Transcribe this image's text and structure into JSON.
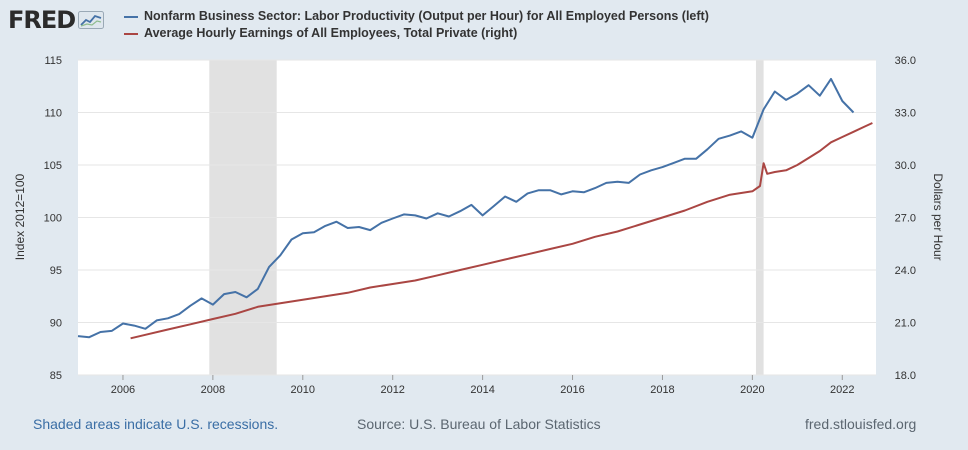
{
  "brand": {
    "logo_text": "FRED",
    "logo_icon": "chart-line-icon"
  },
  "legend": [
    {
      "label": "Nonfarm Business Sector: Labor Productivity (Output per Hour) for All Employed Persons (left)",
      "color": "#4572a7"
    },
    {
      "label": "Average Hourly Earnings of All Employees, Total Private (right)",
      "color": "#aa4643"
    }
  ],
  "footer": {
    "note": "Shaded areas indicate U.S. recessions.",
    "source": "Source: U.S. Bureau of Labor Statistics",
    "url": "fred.stlouisfed.org"
  },
  "chart_data": {
    "type": "line",
    "xlabel": "",
    "x_ticks": [
      "2006",
      "2008",
      "2010",
      "2012",
      "2014",
      "2016",
      "2018",
      "2020",
      "2022"
    ],
    "xlim": [
      2005.0,
      2022.75
    ],
    "left_axis": {
      "label": "Index 2012=100",
      "ylim": [
        85,
        115
      ],
      "ticks": [
        "85",
        "90",
        "95",
        "100",
        "105",
        "110",
        "115"
      ]
    },
    "right_axis": {
      "label": "Dollars per Hour",
      "ylim": [
        18.0,
        36.0
      ],
      "ticks": [
        "18.0",
        "21.0",
        "24.0",
        "27.0",
        "30.0",
        "33.0",
        "36.0"
      ]
    },
    "recessions": [
      [
        2007.92,
        2009.42
      ],
      [
        2020.08,
        2020.25
      ]
    ],
    "grid": true,
    "series": [
      {
        "name": "Nonfarm Business Sector: Labor Productivity (Output per Hour) for All Employed Persons (left)",
        "axis": "left",
        "color": "#4572a7",
        "x": [
          2005.0,
          2005.25,
          2005.5,
          2005.75,
          2006.0,
          2006.25,
          2006.5,
          2006.75,
          2007.0,
          2007.25,
          2007.5,
          2007.75,
          2008.0,
          2008.25,
          2008.5,
          2008.75,
          2009.0,
          2009.25,
          2009.5,
          2009.75,
          2010.0,
          2010.25,
          2010.5,
          2010.75,
          2011.0,
          2011.25,
          2011.5,
          2011.75,
          2012.0,
          2012.25,
          2012.5,
          2012.75,
          2013.0,
          2013.25,
          2013.5,
          2013.75,
          2014.0,
          2014.25,
          2014.5,
          2014.75,
          2015.0,
          2015.25,
          2015.5,
          2015.75,
          2016.0,
          2016.25,
          2016.5,
          2016.75,
          2017.0,
          2017.25,
          2017.5,
          2017.75,
          2018.0,
          2018.25,
          2018.5,
          2018.75,
          2019.0,
          2019.25,
          2019.5,
          2019.75,
          2020.0,
          2020.25,
          2020.5,
          2020.75,
          2021.0,
          2021.25,
          2021.5,
          2021.75,
          2022.0,
          2022.25
        ],
        "values": [
          88.7,
          88.6,
          89.1,
          89.2,
          89.9,
          89.7,
          89.4,
          90.2,
          90.4,
          90.8,
          91.6,
          92.3,
          91.7,
          92.7,
          92.9,
          92.4,
          93.2,
          95.3,
          96.4,
          97.9,
          98.5,
          98.6,
          99.2,
          99.6,
          99.0,
          99.1,
          98.8,
          99.5,
          99.9,
          100.3,
          100.2,
          99.9,
          100.4,
          100.1,
          100.6,
          101.2,
          100.2,
          101.1,
          102.0,
          101.5,
          102.3,
          102.6,
          102.6,
          102.2,
          102.5,
          102.4,
          102.8,
          103.3,
          103.4,
          103.3,
          104.1,
          104.5,
          104.8,
          105.2,
          105.6,
          105.6,
          106.5,
          107.5,
          107.8,
          108.2,
          107.6,
          110.3,
          112.0,
          111.2,
          111.8,
          112.6,
          111.6,
          113.2,
          111.1,
          110.0
        ]
      },
      {
        "name": "Average Hourly Earnings of All Employees, Total Private (right)",
        "axis": "right",
        "color": "#aa4643",
        "x": [
          2006.17,
          2006.5,
          2007.0,
          2007.5,
          2008.0,
          2008.5,
          2009.0,
          2009.5,
          2010.0,
          2010.5,
          2011.0,
          2011.5,
          2012.0,
          2012.5,
          2013.0,
          2013.5,
          2014.0,
          2014.5,
          2015.0,
          2015.5,
          2016.0,
          2016.5,
          2017.0,
          2017.5,
          2018.0,
          2018.5,
          2019.0,
          2019.5,
          2020.0,
          2020.17,
          2020.25,
          2020.33,
          2020.5,
          2020.75,
          2021.0,
          2021.25,
          2021.5,
          2021.75,
          2022.0,
          2022.25,
          2022.5,
          2022.67
        ],
        "values": [
          20.1,
          20.3,
          20.6,
          20.9,
          21.2,
          21.5,
          21.9,
          22.1,
          22.3,
          22.5,
          22.7,
          23.0,
          23.2,
          23.4,
          23.7,
          24.0,
          24.3,
          24.6,
          24.9,
          25.2,
          25.5,
          25.9,
          26.2,
          26.6,
          27.0,
          27.4,
          27.9,
          28.3,
          28.5,
          28.8,
          30.1,
          29.5,
          29.6,
          29.7,
          30.0,
          30.4,
          30.8,
          31.3,
          31.6,
          31.9,
          32.2,
          32.4
        ]
      }
    ]
  }
}
